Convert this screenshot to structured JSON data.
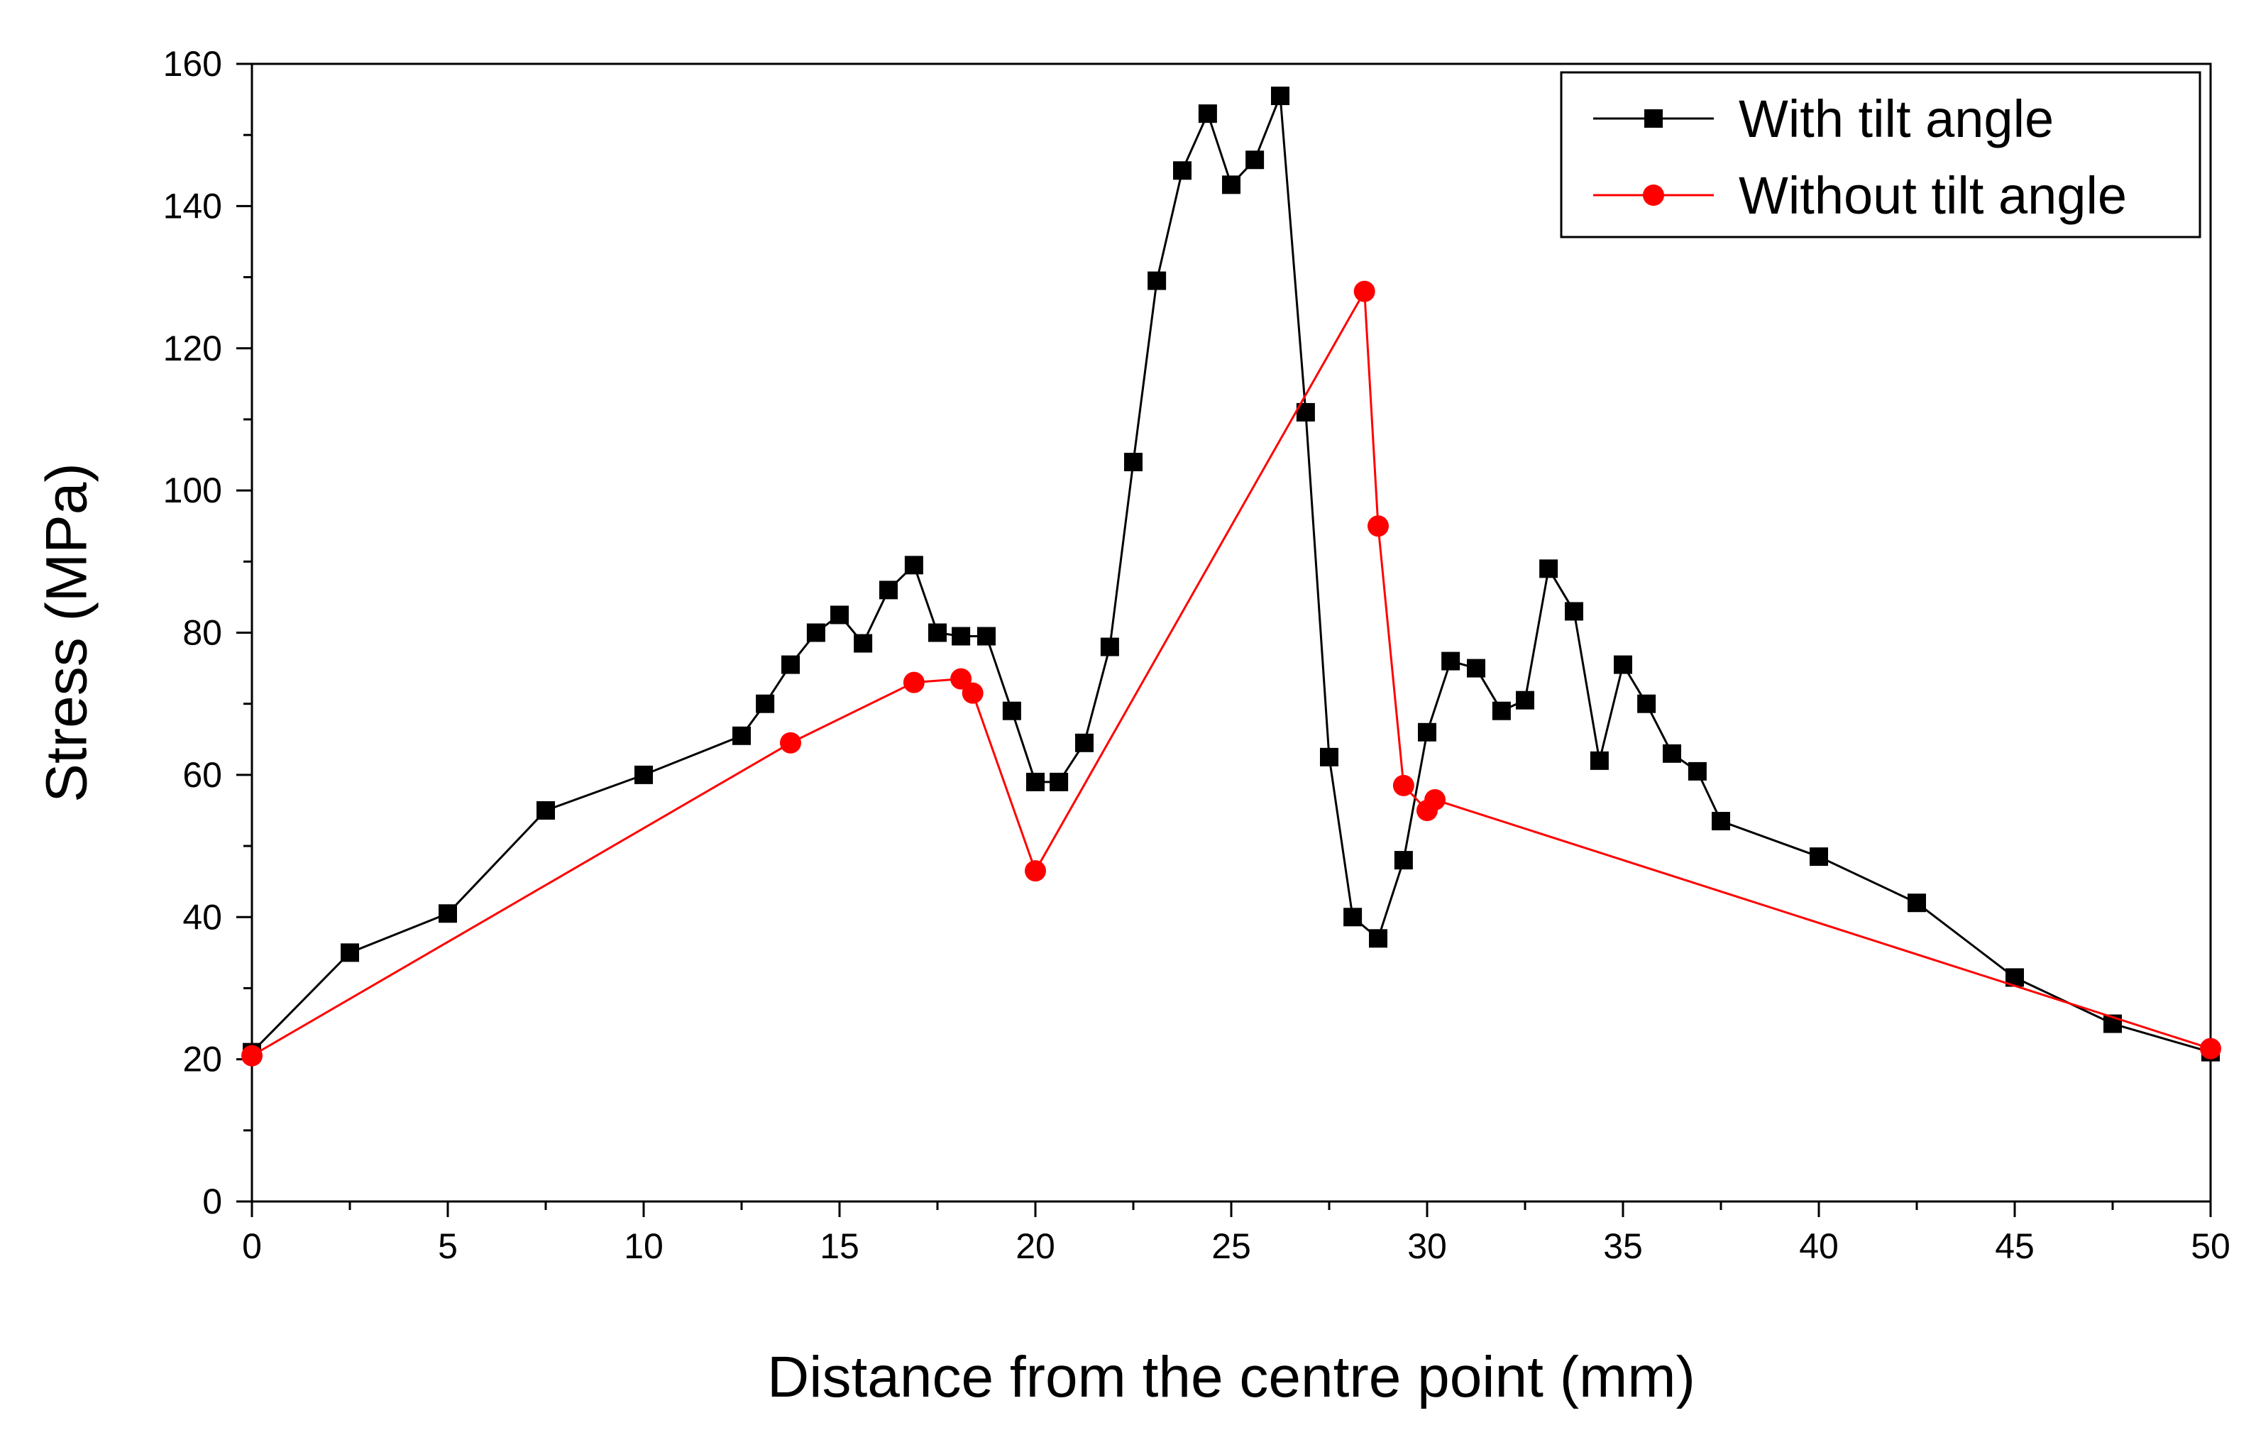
{
  "chart_data": {
    "type": "line",
    "title": "",
    "xlabel": "Distance from the centre point (mm)",
    "ylabel": "Stress (MPa)",
    "xlim": [
      0,
      50
    ],
    "ylim": [
      0,
      160
    ],
    "xticks": [
      0,
      5,
      10,
      15,
      20,
      25,
      30,
      35,
      40,
      45,
      50
    ],
    "yticks": [
      0,
      20,
      40,
      60,
      80,
      100,
      120,
      140,
      160
    ],
    "grid": false,
    "legend_position": "top-right",
    "series": [
      {
        "name": "With tilt angle",
        "color": "#000000",
        "marker": "square",
        "x": [
          0,
          2.5,
          5,
          7.5,
          10,
          12.5,
          13.1,
          13.75,
          14.4,
          15.0,
          15.6,
          16.25,
          16.9,
          17.5,
          18.1,
          18.75,
          19.4,
          20.0,
          20.6,
          21.25,
          21.9,
          22.5,
          23.1,
          23.75,
          24.4,
          25.0,
          25.6,
          26.25,
          26.9,
          27.5,
          28.1,
          28.75,
          29.4,
          30.0,
          30.6,
          31.25,
          31.9,
          32.5,
          33.1,
          33.75,
          34.4,
          35.0,
          35.6,
          36.25,
          36.9,
          37.5,
          40,
          42.5,
          45,
          47.5,
          50
        ],
        "y": [
          21,
          35,
          40.5,
          55,
          60,
          65.5,
          70,
          75.5,
          80,
          82.5,
          78.5,
          86,
          89.5,
          80,
          79.5,
          79.5,
          69,
          59,
          59,
          64.5,
          78,
          104,
          129.5,
          145,
          153,
          143,
          146.5,
          155.5,
          111,
          62.5,
          40,
          37,
          48,
          66,
          76,
          75,
          69,
          70.5,
          89,
          83,
          62,
          75.5,
          70,
          63,
          60.5,
          53.5,
          48.5,
          42,
          31.5,
          25,
          21
        ]
      },
      {
        "name": "Without tilt angle",
        "color": "#ff0000",
        "marker": "circle",
        "x": [
          0,
          13.75,
          16.9,
          18.1,
          18.4,
          20.0,
          28.4,
          28.75,
          29.4,
          30.0,
          30.2,
          50
        ],
        "y": [
          20.5,
          64.5,
          73,
          73.5,
          71.5,
          46.5,
          128,
          95,
          58.5,
          55,
          56.5,
          21.5
        ]
      }
    ]
  }
}
